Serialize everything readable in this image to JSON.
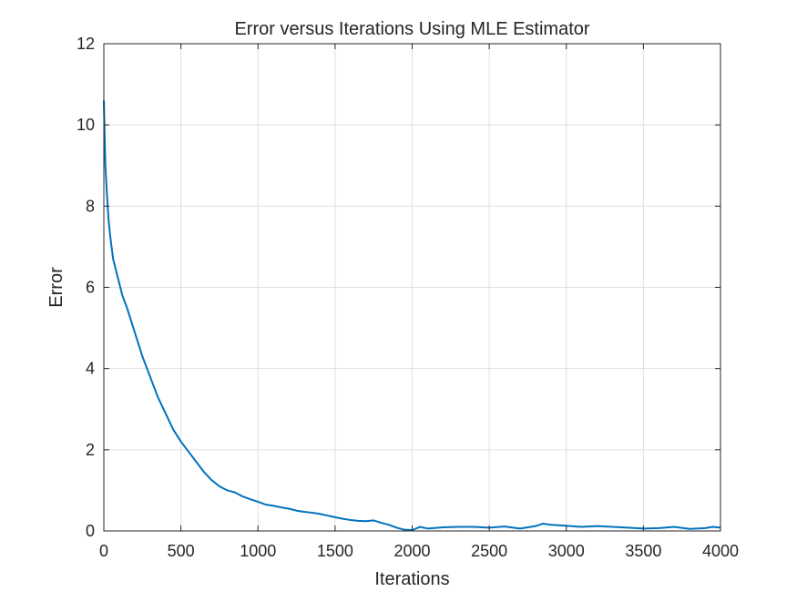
{
  "chart_data": {
    "type": "line",
    "title": "Error versus Iterations Using MLE Estimator",
    "xlabel": "Iterations",
    "ylabel": "Error",
    "xlim": [
      0,
      4000
    ],
    "ylim": [
      0,
      12
    ],
    "xticks": [
      0,
      500,
      1000,
      1500,
      2000,
      2500,
      3000,
      3500,
      4000
    ],
    "xtick_labels": [
      "0",
      "500",
      "1000",
      "1500",
      "2000",
      "2500",
      "3000",
      "3500",
      "4000"
    ],
    "yticks": [
      0,
      2,
      4,
      6,
      8,
      10,
      12
    ],
    "ytick_labels": [
      "0",
      "2",
      "4",
      "6",
      "8",
      "10",
      "12"
    ],
    "grid": true,
    "line_color": "#0072BD",
    "series": [
      {
        "x": [
          0,
          10,
          20,
          30,
          40,
          50,
          60,
          80,
          100,
          120,
          150,
          200,
          250,
          300,
          350,
          400,
          450,
          500,
          550,
          600,
          650,
          700,
          750,
          800,
          850,
          900,
          950,
          1000,
          1050,
          1100,
          1150,
          1200,
          1250,
          1300,
          1350,
          1400,
          1450,
          1500,
          1550,
          1600,
          1650,
          1700,
          1750,
          1800,
          1850,
          1900,
          1950,
          2000,
          2050,
          2100,
          2200,
          2300,
          2400,
          2500,
          2600,
          2700,
          2800,
          2850,
          2900,
          3000,
          3100,
          3200,
          3300,
          3400,
          3500,
          3600,
          3700,
          3800,
          3900,
          3950,
          4000
        ],
        "values": [
          10.6,
          9.0,
          8.3,
          7.7,
          7.3,
          7.0,
          6.7,
          6.4,
          6.1,
          5.8,
          5.5,
          4.9,
          4.3,
          3.8,
          3.3,
          2.9,
          2.5,
          2.2,
          1.95,
          1.7,
          1.45,
          1.25,
          1.1,
          1.0,
          0.95,
          0.85,
          0.78,
          0.72,
          0.65,
          0.62,
          0.58,
          0.55,
          0.5,
          0.47,
          0.45,
          0.42,
          0.38,
          0.34,
          0.3,
          0.27,
          0.25,
          0.24,
          0.26,
          0.2,
          0.15,
          0.08,
          0.03,
          0.02,
          0.1,
          0.06,
          0.09,
          0.1,
          0.1,
          0.08,
          0.11,
          0.06,
          0.12,
          0.18,
          0.15,
          0.13,
          0.1,
          0.12,
          0.1,
          0.08,
          0.06,
          0.07,
          0.1,
          0.05,
          0.07,
          0.1,
          0.08
        ]
      }
    ]
  }
}
